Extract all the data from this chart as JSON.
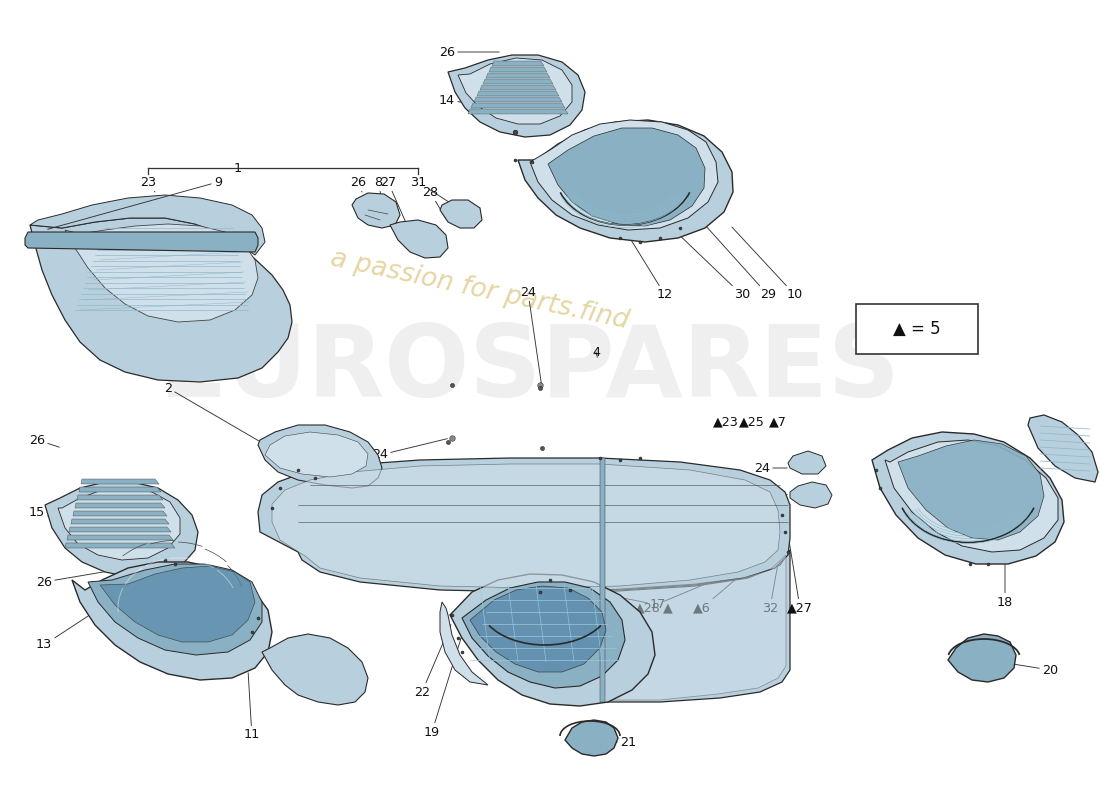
{
  "bg": "#ffffff",
  "c_main": "#b8d0de",
  "c_light": "#cfe0ea",
  "c_dark": "#8ab0c4",
  "c_vdark": "#5a8aaa",
  "c_line": "#2a2a2a",
  "c_line2": "#444444",
  "c_grate": "#90b8cc",
  "c_yellow": "#c8a030",
  "c_wmgray": "#b8b8b8",
  "figsize": [
    11.0,
    8.0
  ],
  "dpi": 100
}
